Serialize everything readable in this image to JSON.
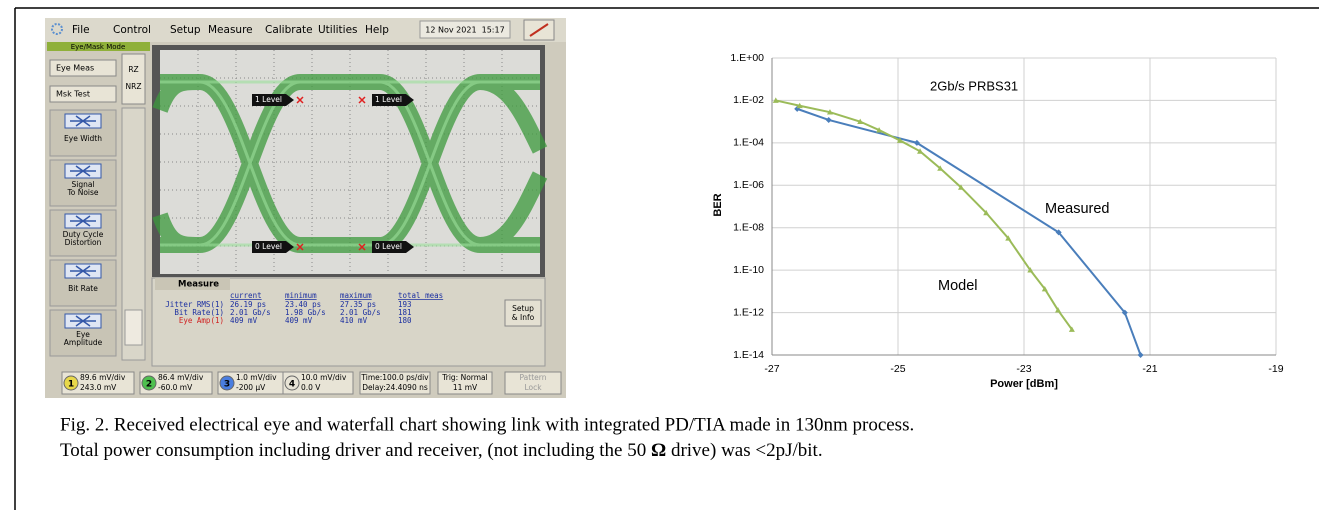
{
  "scope": {
    "menu": [
      "File",
      "Control",
      "Setup",
      "Measure",
      "Calibrate",
      "Utilities",
      "Help"
    ],
    "datetime": "12 Nov 2021  15:17",
    "mode": "Eye/Mask Mode",
    "buttons": [
      "Eye Meas",
      "Msk Test"
    ],
    "format": [
      "RZ",
      "NRZ"
    ],
    "side_buttons": [
      [
        "Eye Width"
      ],
      [
        "Signal",
        "To Noise"
      ],
      [
        "Duty Cycle",
        "Distortion"
      ],
      [
        "Bit Rate"
      ],
      [
        "Eye",
        "Amplitude"
      ]
    ],
    "eye_labels": [
      "1 Level",
      "1 Level",
      "0 Level",
      "0 Level"
    ],
    "measure": {
      "title": "Measure",
      "headers": [
        "current",
        "minimum",
        "maximum",
        "total meas"
      ],
      "rows": [
        [
          "Jitter RMS(1)",
          "26.19 ps",
          "23.40 ps",
          "27.35 ps",
          "193"
        ],
        [
          "Bit Rate(1)",
          "2.01 Gb/s",
          "1.98 Gb/s",
          "2.01 Gb/s",
          "181"
        ],
        [
          "Eye Amp(1)",
          "409 mV",
          "409 mV",
          "410 mV",
          "180"
        ]
      ]
    },
    "setup_button": [
      "Setup",
      "& Info"
    ],
    "channels": [
      {
        "n": "1",
        "scale": "89.6 mV/div",
        "offset": "243.0 mV"
      },
      {
        "n": "2",
        "scale": "86.4 mV/div",
        "offset": "-60.0 mV"
      },
      {
        "n": "3",
        "scale": "1.0 mV/div",
        "offset": "-200 µV"
      },
      {
        "n": "4",
        "scale": "10.0 mV/div",
        "offset": "0.0 V"
      }
    ],
    "timebase": [
      "Time:100.0 ps/div",
      "Delay:24.4090 ns"
    ],
    "trigger": [
      "Trig: Normal",
      "11 mV"
    ],
    "pattern": [
      "Pattern",
      "Lock"
    ]
  },
  "chart_data": {
    "type": "line",
    "x_label": "Power [dBm]",
    "y_label": "BER",
    "log_y": true,
    "grid": true,
    "annotations": [
      "2Gb/s PRBS31",
      "Measured",
      "Model"
    ],
    "xlim": [
      -27,
      -19
    ],
    "xticks": [
      -27,
      -25,
      -23,
      -21,
      -19
    ],
    "ylim": [
      1e-14,
      1
    ],
    "yticks": [
      {
        "value": 1,
        "label": "1.E+00"
      },
      {
        "value": 0.01,
        "label": "1.E-02"
      },
      {
        "value": 0.0001,
        "label": "1.E-04"
      },
      {
        "value": 1e-06,
        "label": "1.E-06"
      },
      {
        "value": 1e-08,
        "label": "1.E-08"
      },
      {
        "value": 1e-10,
        "label": "1.E-10"
      },
      {
        "value": 1e-12,
        "label": "1.E-12"
      },
      {
        "value": 1e-14,
        "label": "1.E-14"
      }
    ],
    "series": [
      {
        "name": "Measured",
        "color": "#4a7ebb",
        "marker": "diamond",
        "x": [
          -26.6,
          -26.1,
          -24.7,
          -22.45,
          -21.4,
          -21.15
        ],
        "values": [
          0.004,
          0.0012,
          0.0001,
          6e-09,
          1e-12,
          1e-14
        ]
      },
      {
        "name": "Model",
        "color": "#9bbb59",
        "marker": "triangle",
        "x": [
          -26.94,
          -26.56,
          -26.08,
          -25.6,
          -25.3,
          -24.97,
          -24.65,
          -24.33,
          -24.0,
          -23.6,
          -23.25,
          -22.9,
          -22.67,
          -22.46,
          -22.24
        ],
        "values": [
          0.01,
          0.0056,
          0.0028,
          0.001,
          0.0004,
          0.00013,
          4e-05,
          6.3e-06,
          8e-07,
          5e-08,
          3.2e-09,
          1e-10,
          1.3e-11,
          1.3e-12,
          1.6e-13
        ]
      }
    ]
  },
  "caption": {
    "line1": "Fig. 2. Received electrical eye and waterfall chart showing link with integrated PD/TIA made in 130nm process.",
    "line2": [
      "Total power consumption including driver and receiver, (not including the 50 ",
      "Ω",
      " drive) was <2pJ/bit."
    ]
  }
}
